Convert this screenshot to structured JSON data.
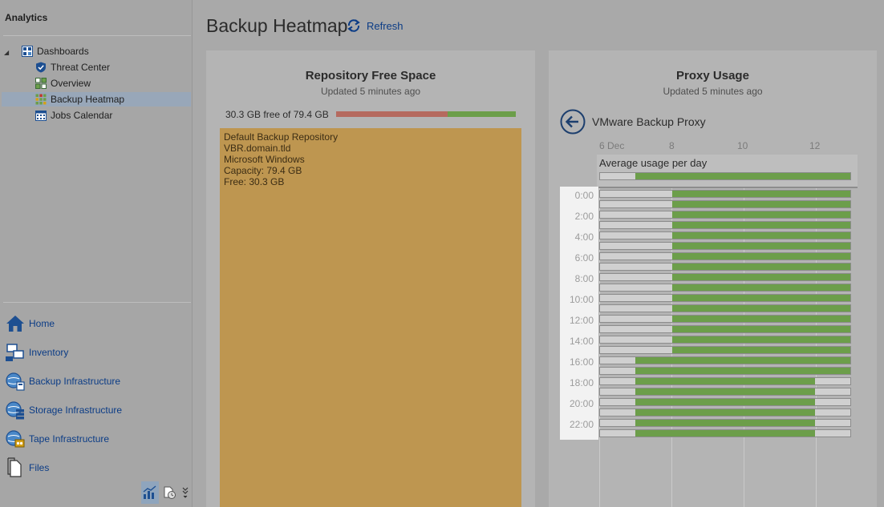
{
  "sidebar": {
    "title": "Analytics",
    "tree": {
      "root": {
        "label": "Dashboards",
        "icon": "dashboard-icon"
      },
      "items": [
        {
          "label": "Threat Center",
          "icon": "shield-icon"
        },
        {
          "label": "Overview",
          "icon": "overview-icon"
        },
        {
          "label": "Backup Heatmap",
          "icon": "heatmap-icon",
          "selected": true
        },
        {
          "label": "Jobs Calendar",
          "icon": "calendar-icon"
        }
      ]
    },
    "nav": [
      {
        "label": "Home",
        "icon": "home-icon"
      },
      {
        "label": "Inventory",
        "icon": "inventory-icon"
      },
      {
        "label": "Backup Infrastructure",
        "icon": "backup-infrastructure-icon"
      },
      {
        "label": "Storage Infrastructure",
        "icon": "storage-infrastructure-icon"
      },
      {
        "label": "Tape Infrastructure",
        "icon": "tape-infrastructure-icon"
      },
      {
        "label": "Files",
        "icon": "files-icon"
      }
    ],
    "bottom_icons": [
      "analytics-icon",
      "history-icon",
      "more-icon"
    ]
  },
  "header": {
    "title": "Backup Heatmap",
    "refresh_label": "Refresh"
  },
  "repository_panel": {
    "title": "Repository Free Space",
    "updated": "Updated 5 minutes ago",
    "free_label": "30.3 GB free of 79.4 GB",
    "free_fraction": 0.38,
    "details": [
      "Default Backup Repository",
      "VBR.domain.tld",
      "Microsoft Windows",
      "Capacity: 79.4 GB",
      "Free: 30.3 GB"
    ]
  },
  "proxy_panel": {
    "title": "Proxy Usage",
    "updated": "Updated 5 minutes ago",
    "proxy_name": "VMware Backup Proxy",
    "x_axis_labels": [
      "6 Dec",
      "8",
      "10",
      "12"
    ],
    "average_label": "Average usage per day",
    "average_fill": {
      "start": 0.14,
      "end": 1.0
    },
    "hour_labels": [
      "0:00",
      "2:00",
      "4:00",
      "6:00",
      "8:00",
      "10:00",
      "12:00",
      "14:00",
      "16:00",
      "18:00",
      "20:00",
      "22:00"
    ],
    "heatmap_rows_fill": [
      [
        0.29,
        1.0
      ],
      [
        0.29,
        1.0
      ],
      [
        0.29,
        1.0
      ],
      [
        0.29,
        1.0
      ],
      [
        0.29,
        1.0
      ],
      [
        0.29,
        1.0
      ],
      [
        0.29,
        1.0
      ],
      [
        0.29,
        1.0
      ],
      [
        0.29,
        1.0
      ],
      [
        0.29,
        1.0
      ],
      [
        0.29,
        1.0
      ],
      [
        0.29,
        1.0
      ],
      [
        0.29,
        1.0
      ],
      [
        0.29,
        1.0
      ],
      [
        0.29,
        1.0
      ],
      [
        0.29,
        1.0
      ],
      [
        0.14,
        1.0
      ],
      [
        0.14,
        1.0
      ],
      [
        0.14,
        0.86
      ],
      [
        0.14,
        0.86
      ],
      [
        0.14,
        0.86
      ],
      [
        0.14,
        0.86
      ],
      [
        0.14,
        0.86
      ],
      [
        0.14,
        0.86
      ]
    ]
  },
  "colors": {
    "accent": "#0b3c86",
    "usage_green": "#6c9e4a",
    "used_red": "#b56a5f",
    "repository_block": "#be9650"
  }
}
